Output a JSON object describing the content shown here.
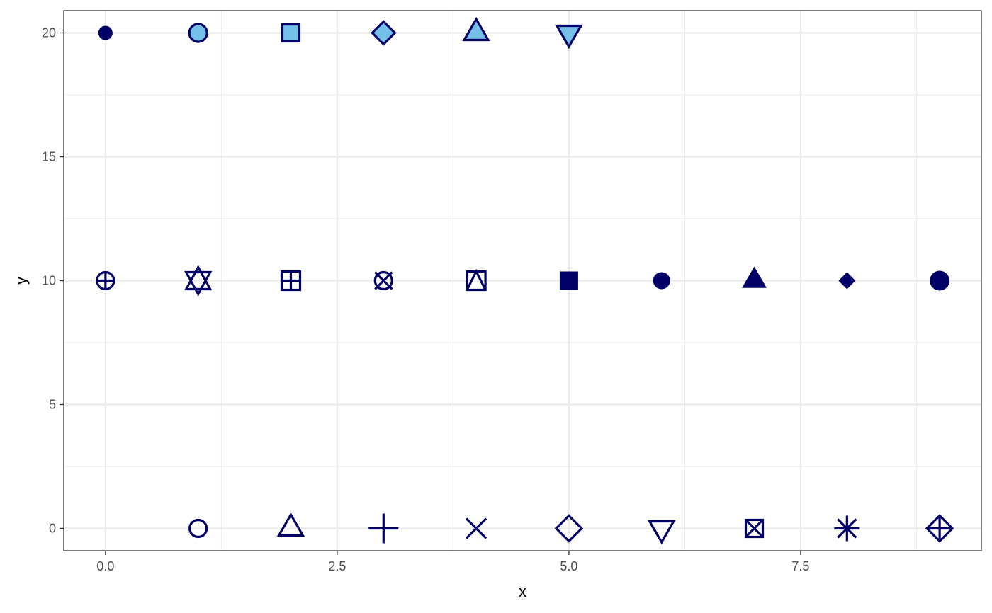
{
  "chart_data": {
    "type": "scatter",
    "title": "",
    "xlabel": "x",
    "ylabel": "y",
    "xlim": [
      -0.45,
      9.45
    ],
    "ylim": [
      -0.9,
      20.9
    ],
    "x_ticks": [
      0.0,
      2.5,
      5.0,
      7.5
    ],
    "x_tick_labels": [
      "0.0",
      "2.5",
      "5.0",
      "7.5"
    ],
    "y_ticks": [
      0,
      5,
      10,
      15,
      20
    ],
    "y_tick_labels": [
      "0",
      "5",
      "10",
      "15",
      "20"
    ],
    "grid": true,
    "legend": "none",
    "colors": {
      "stroke": "#000066",
      "fill": "#74c0e8"
    },
    "points": [
      {
        "x": 0,
        "y": 10,
        "shape": 10
      },
      {
        "x": 1,
        "y": 0,
        "shape": 1
      },
      {
        "x": 2,
        "y": 0,
        "shape": 2
      },
      {
        "x": 3,
        "y": 0,
        "shape": 3
      },
      {
        "x": 4,
        "y": 0,
        "shape": 4
      },
      {
        "x": 5,
        "y": 0,
        "shape": 5
      },
      {
        "x": 6,
        "y": 0,
        "shape": 6
      },
      {
        "x": 7,
        "y": 0,
        "shape": 7
      },
      {
        "x": 8,
        "y": 0,
        "shape": 8
      },
      {
        "x": 9,
        "y": 0,
        "shape": 9
      },
      {
        "x": 1,
        "y": 10,
        "shape": 11
      },
      {
        "x": 2,
        "y": 10,
        "shape": 12
      },
      {
        "x": 3,
        "y": 10,
        "shape": 13
      },
      {
        "x": 4,
        "y": 10,
        "shape": 14
      },
      {
        "x": 5,
        "y": 10,
        "shape": 15
      },
      {
        "x": 6,
        "y": 10,
        "shape": 16
      },
      {
        "x": 7,
        "y": 10,
        "shape": 17
      },
      {
        "x": 8,
        "y": 10,
        "shape": 18
      },
      {
        "x": 9,
        "y": 10,
        "shape": 19
      },
      {
        "x": 0,
        "y": 20,
        "shape": 20
      },
      {
        "x": 1,
        "y": 20,
        "shape": 21
      },
      {
        "x": 2,
        "y": 20,
        "shape": 22
      },
      {
        "x": 3,
        "y": 20,
        "shape": 23
      },
      {
        "x": 4,
        "y": 20,
        "shape": 24
      },
      {
        "x": 5,
        "y": 20,
        "shape": 25
      }
    ]
  }
}
